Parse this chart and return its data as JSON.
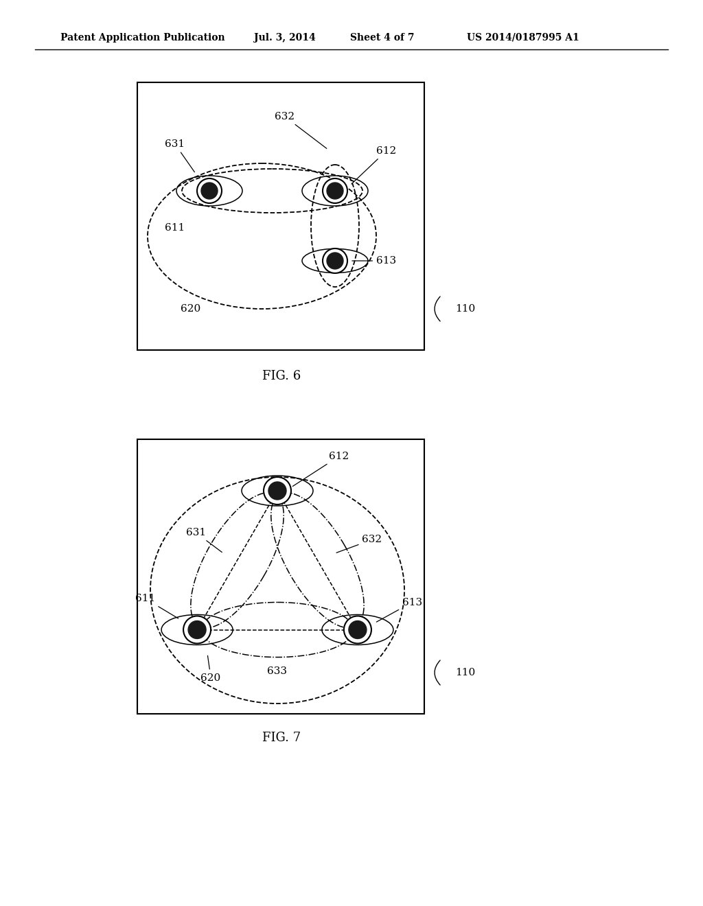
{
  "bg_color": "#ffffff",
  "header_text": "Patent Application Publication",
  "header_date": "Jul. 3, 2014",
  "header_sheet": "Sheet 4 of 7",
  "header_patent": "US 2014/0187995 A1",
  "fig6_label": "FIG. 6",
  "fig7_label": "FIG. 7"
}
